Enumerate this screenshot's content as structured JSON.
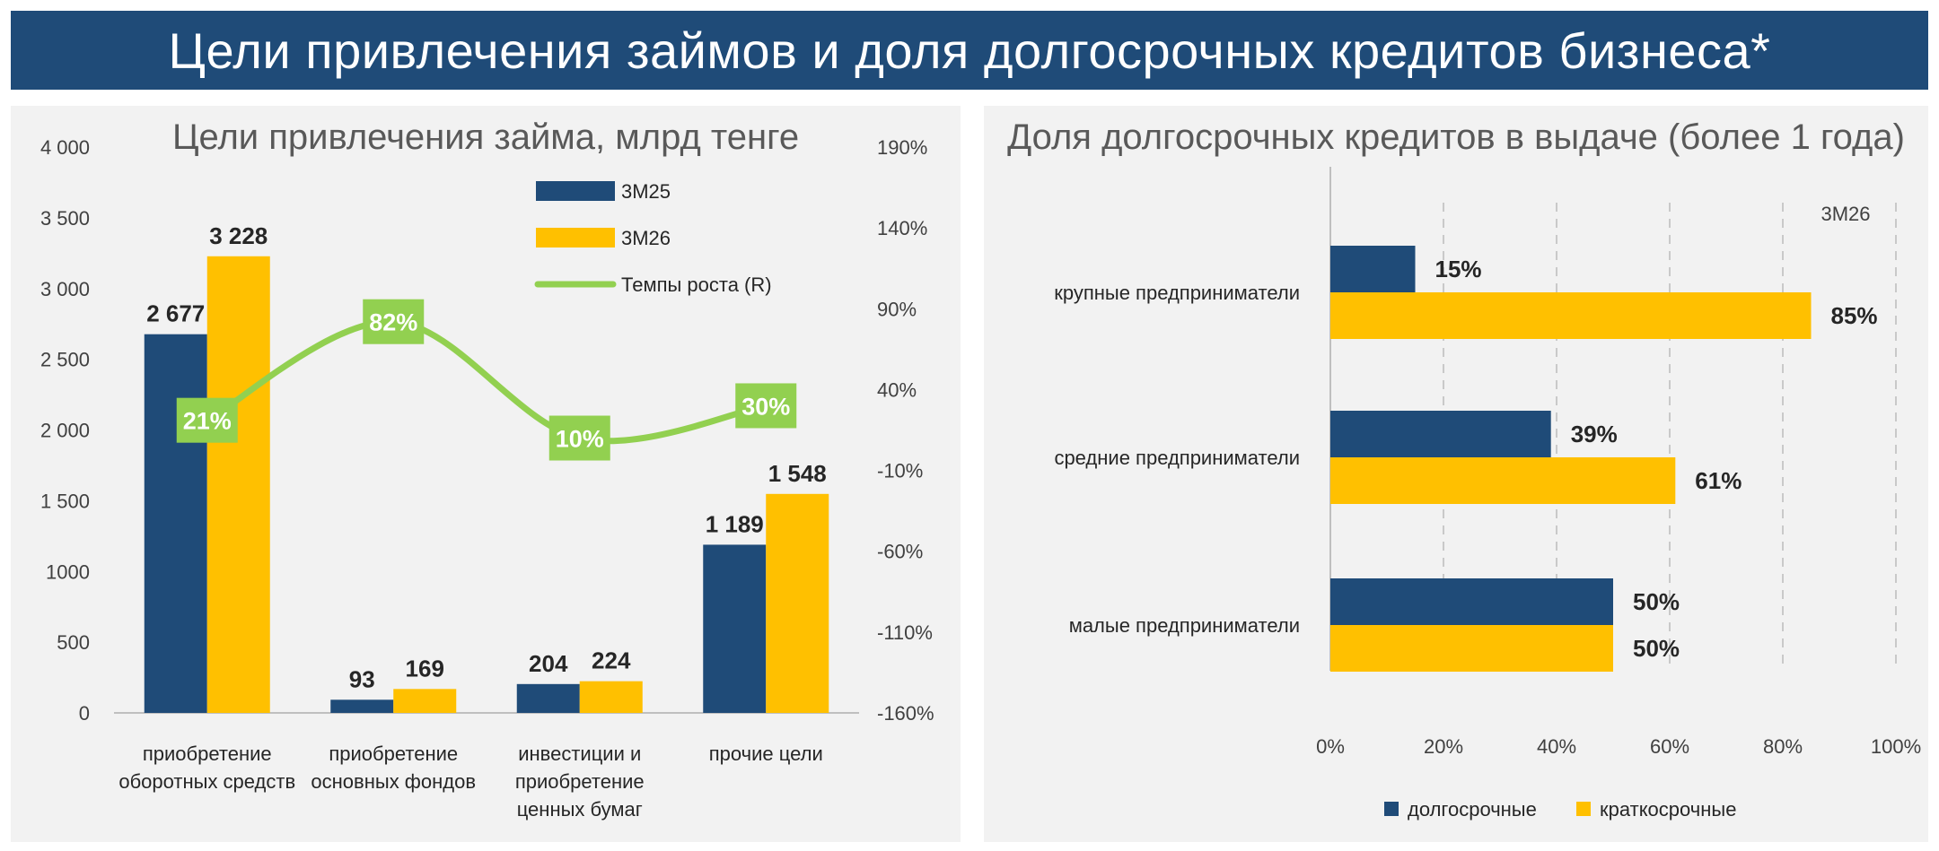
{
  "header": {
    "title": "Цели привлечения займов и доля долгосрочных кредитов бизнеса*"
  },
  "colors": {
    "navy": "#1f4b78",
    "gold": "#ffc000",
    "green": "#92d050",
    "header_bg": "#1f4b78",
    "panel_bg": "#f2f2f2"
  },
  "chart_data": [
    {
      "type": "bar",
      "title": "Цели привлечения займа, млрд тенге",
      "categories": [
        [
          "приобретение",
          "оборотных средств"
        ],
        [
          "приобретение",
          "основных фондов"
        ],
        [
          "инвестиции и",
          "приобретение",
          "ценных бумаг"
        ],
        [
          "прочие цели"
        ]
      ],
      "series": [
        {
          "name": "3М25",
          "values": [
            2677,
            93,
            204,
            1189
          ],
          "labels": [
            "2 677",
            "93",
            "204",
            "1 189"
          ]
        },
        {
          "name": "3М26",
          "values": [
            3228,
            169,
            224,
            1548
          ],
          "labels": [
            "3 228",
            "169",
            "224",
            "1 548"
          ]
        }
      ],
      "line_series": {
        "name": "Темпы роста (R)",
        "values": [
          21,
          82,
          10,
          30
        ],
        "labels": [
          "21%",
          "82%",
          "10%",
          "30%"
        ]
      },
      "y_left": {
        "min": 0,
        "max": 4000,
        "ticks": [
          0,
          500,
          1000,
          1500,
          2000,
          2500,
          3000,
          3500,
          4000
        ],
        "tick_labels": [
          "0",
          "500",
          "1000",
          "1 500",
          "2 000",
          "2 500",
          "3 000",
          "3 500",
          "4 000"
        ]
      },
      "y_right": {
        "min": -160,
        "max": 190,
        "ticks": [
          -160,
          -110,
          -60,
          -10,
          40,
          90,
          140,
          190
        ],
        "tick_labels": [
          "-160%",
          "-110%",
          "-60%",
          "-10%",
          "40%",
          "90%",
          "140%",
          "190%"
        ]
      },
      "legend_position": "top-right",
      "grid": false
    },
    {
      "type": "bar",
      "orientation": "horizontal",
      "stacked": false,
      "title": "Доля долгосрочных кредитов в выдаче (более 1 года)",
      "period_label": "3М26",
      "categories": [
        "крупные предприниматели",
        "средние предприниматели",
        "малые предприниматели"
      ],
      "series": [
        {
          "name": "долгосрочные",
          "values": [
            15,
            39,
            50
          ],
          "labels": [
            "15%",
            "39%",
            "50%"
          ]
        },
        {
          "name": "краткосрочные",
          "values": [
            85,
            61,
            50
          ],
          "labels": [
            "85%",
            "61%",
            "50%"
          ]
        }
      ],
      "x_axis": {
        "min": 0,
        "max": 100,
        "ticks": [
          0,
          20,
          40,
          60,
          80,
          100
        ],
        "tick_labels": [
          "0%",
          "20%",
          "40%",
          "60%",
          "80%",
          "100%"
        ]
      },
      "legend_position": "bottom",
      "grid": true
    }
  ]
}
